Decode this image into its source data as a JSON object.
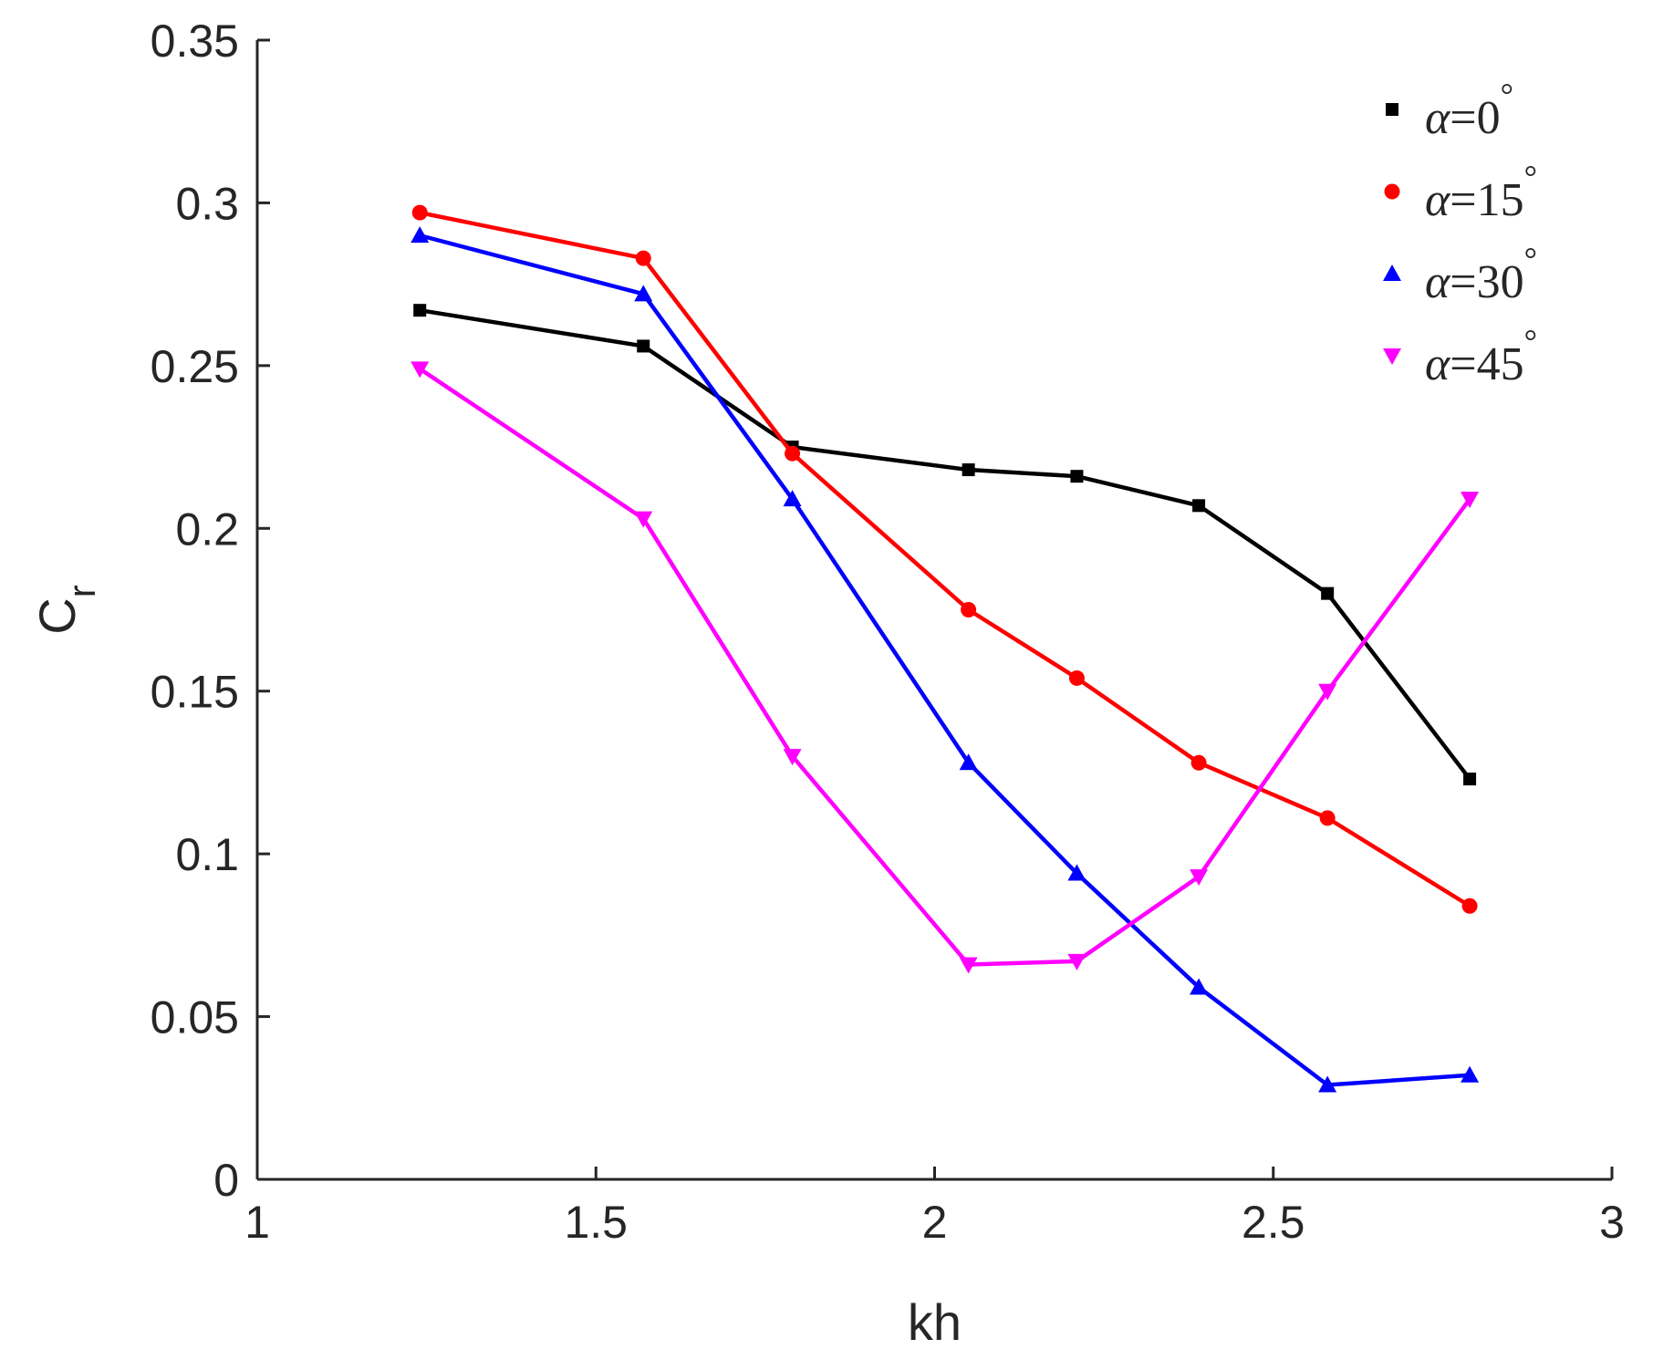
{
  "chart_data": {
    "type": "line",
    "title": "",
    "xlabel": "kh",
    "ylabel": {
      "main": "C",
      "subscript": "r"
    },
    "xlim": [
      1,
      3
    ],
    "ylim": [
      0,
      0.35
    ],
    "x_ticks": [
      1,
      1.5,
      2,
      2.5,
      3
    ],
    "x_tick_labels": [
      "1",
      "1.5",
      "2",
      "2.5",
      "3"
    ],
    "y_ticks": [
      0,
      0.05,
      0.1,
      0.15,
      0.2,
      0.25,
      0.3,
      0.35
    ],
    "y_tick_labels": [
      "0",
      "0.05",
      "0.1",
      "0.15",
      "0.2",
      "0.25",
      "0.3",
      "0.35"
    ],
    "grid": false,
    "legend_position": "top-right",
    "x": [
      1.24,
      1.57,
      1.79,
      2.05,
      2.21,
      2.39,
      2.58,
      2.79
    ],
    "series": [
      {
        "name": "α=0°",
        "legend": {
          "symbol": "α",
          "text": "=0",
          "degree": "°"
        },
        "color": "#000000",
        "marker": "square",
        "values": [
          0.267,
          0.256,
          0.225,
          0.218,
          0.216,
          0.207,
          0.18,
          0.123
        ]
      },
      {
        "name": "α=15°",
        "legend": {
          "symbol": "α",
          "text": "=15",
          "degree": "°"
        },
        "color": "#ff0000",
        "marker": "circle",
        "values": [
          0.297,
          0.283,
          0.223,
          0.175,
          0.154,
          0.128,
          0.111,
          0.084
        ]
      },
      {
        "name": "α=30°",
        "legend": {
          "symbol": "α",
          "text": "=30",
          "degree": "°"
        },
        "color": "#0000ff",
        "marker": "triangle-up",
        "values": [
          0.29,
          0.272,
          0.209,
          0.128,
          0.094,
          0.059,
          0.029,
          0.032
        ]
      },
      {
        "name": "α=45°",
        "legend": {
          "symbol": "α",
          "text": "=45",
          "degree": "°"
        },
        "color": "#ff00ff",
        "marker": "triangle-down",
        "values": [
          0.249,
          0.203,
          0.13,
          0.066,
          0.067,
          0.093,
          0.15,
          0.209
        ]
      }
    ]
  }
}
